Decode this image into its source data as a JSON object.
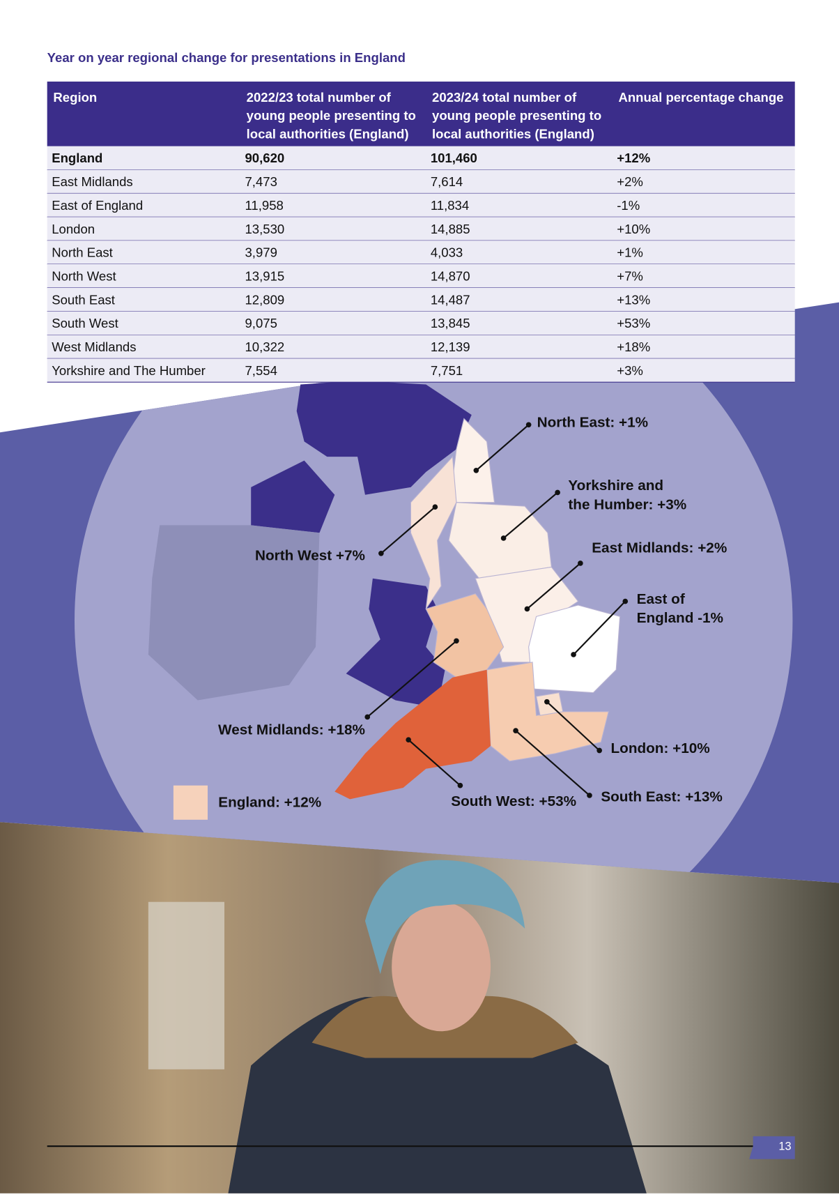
{
  "title": "Year on year regional change for presentations in England",
  "table": {
    "headers": [
      [
        "Region"
      ],
      [
        "2022/23 total number of",
        "young people presenting to",
        "local authorities (England)"
      ],
      [
        "2023/24 total number of",
        "young people presenting to",
        "local authorities (England)"
      ],
      [
        "Annual percentage change"
      ]
    ],
    "rows": [
      [
        "England",
        "90,620",
        "101,460",
        "+12%"
      ],
      [
        "East Midlands",
        "7,473",
        "7,614",
        "+2%"
      ],
      [
        "East of England",
        "11,958",
        "11,834",
        "-1%"
      ],
      [
        "London",
        "13,530",
        "14,885",
        "+10%"
      ],
      [
        "North East",
        "3,979",
        "4,033",
        "+1%"
      ],
      [
        "North West",
        "13,915",
        "14,870",
        "+7%"
      ],
      [
        "South East",
        "12,809",
        "14,487",
        "+13%"
      ],
      [
        "South West",
        "9,075",
        "13,845",
        "+53%"
      ],
      [
        "West Midlands",
        "10,322",
        "12,139",
        "+18%"
      ],
      [
        "Yorkshire and The Humber",
        "7,554",
        "7,751",
        "+3%"
      ]
    ]
  },
  "map": {
    "labels": [
      [
        "North East: +1%"
      ],
      [
        "Yorkshire and",
        "the Humber: +3%"
      ],
      [
        "East Midlands: +2%"
      ],
      [
        "East of",
        "England -1%"
      ],
      [
        "London: +10%"
      ],
      [
        "South East: +13%"
      ],
      [
        "South West: +53%"
      ],
      [
        "West Midlands: +18%"
      ],
      [
        "North West +7%"
      ]
    ],
    "legend": "England: +12%"
  },
  "page_number": "13"
}
